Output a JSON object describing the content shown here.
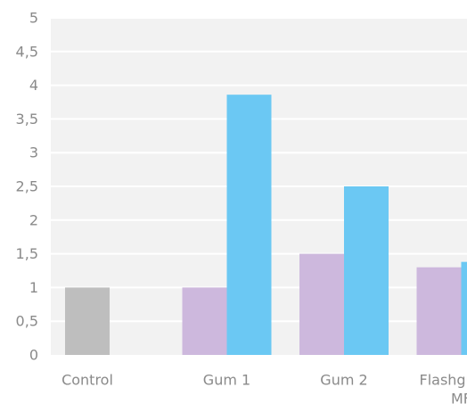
{
  "chart_data": {
    "type": "bar",
    "title": "",
    "xlabel": "",
    "ylabel": "",
    "categories": [
      [
        "Control"
      ],
      [
        "Gum 1"
      ],
      [
        "Gum 2"
      ],
      [
        "Flashgum R",
        "MF"
      ]
    ],
    "bars": [
      {
        "category": 0,
        "slot": 0,
        "value": 1.0,
        "color": "#bebebe"
      },
      {
        "category": 1,
        "slot": 0,
        "value": 1.0,
        "color": "#cdb8dd"
      },
      {
        "category": 1,
        "slot": 1,
        "value": 3.86,
        "color": "#6bc8f3"
      },
      {
        "category": 2,
        "slot": 0,
        "value": 1.5,
        "color": "#cdb8dd"
      },
      {
        "category": 2,
        "slot": 1,
        "value": 2.5,
        "color": "#6bc8f3"
      },
      {
        "category": 3,
        "slot": 0,
        "value": 1.3,
        "color": "#cdb8dd"
      },
      {
        "category": 3,
        "slot": 1,
        "value": 1.38,
        "color": "#6bc8f3"
      }
    ],
    "ylim": [
      0,
      5
    ],
    "yticks": [
      0,
      0.5,
      1,
      1.5,
      2,
      2.5,
      3,
      3.5,
      4,
      4.5,
      5
    ],
    "ytick_labels": [
      "0",
      "0,5",
      "1",
      "1,5",
      "2",
      "2,5",
      "3",
      "3,5",
      "4",
      "4,5",
      "5"
    ],
    "grid": true,
    "legend": "none",
    "colors": {
      "plot_background": "#f2f2f2",
      "gridline": "#ffffff",
      "tick_text": "#8a8a8a"
    }
  }
}
